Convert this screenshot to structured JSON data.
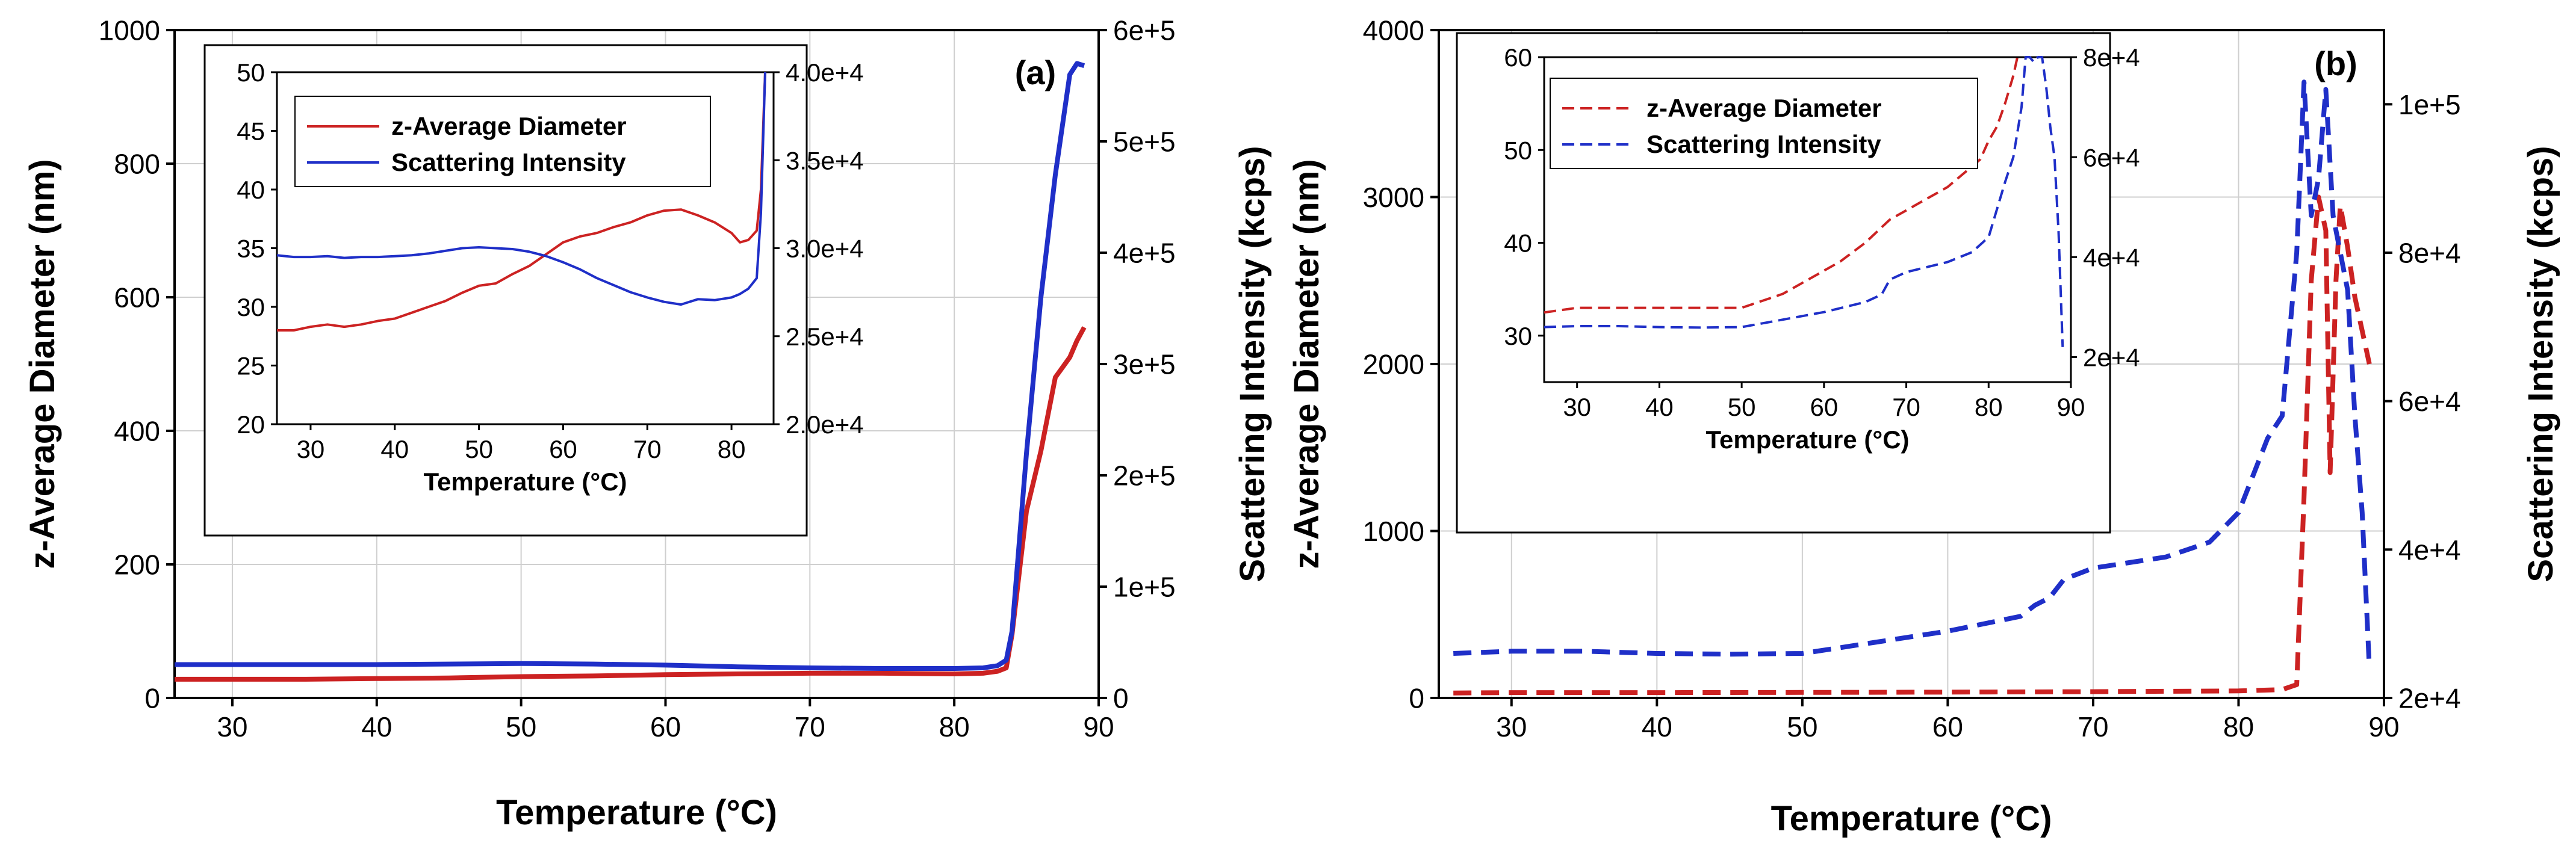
{
  "colors": {
    "red": "#cc2222",
    "blue": "#1f2fc8",
    "grid": "#cfcfcf",
    "axis": "#000000"
  },
  "chart_data": [
    {
      "id": "a",
      "type": "line",
      "panel_label": "(a)",
      "xlabel": "Temperature (°C)",
      "ylabel": "z-Average Diameter (nm)",
      "y2label": "Scattering Intensity (kcps)",
      "xlim": [
        26,
        90
      ],
      "ylim": [
        0,
        1000
      ],
      "y2lim": [
        0,
        600000
      ],
      "xticks": [
        30,
        40,
        50,
        60,
        70,
        80,
        90
      ],
      "yticks": [
        0,
        200,
        400,
        600,
        800,
        1000
      ],
      "y2ticks": [
        0,
        100000,
        200000,
        300000,
        400000,
        500000,
        600000
      ],
      "y2ticklabels": [
        "0",
        "1e+5",
        "2e+5",
        "3e+5",
        "4e+5",
        "5e+5",
        "6e+5"
      ],
      "grid": true,
      "line_style": "solid",
      "series": [
        {
          "name": "z-Average Diameter",
          "axis": "y",
          "color": "#cc2222",
          "x": [
            26,
            30,
            35,
            40,
            45,
            50,
            55,
            60,
            65,
            70,
            75,
            80,
            82,
            83,
            83.6,
            84,
            85,
            86,
            87,
            88,
            88.5,
            89
          ],
          "y": [
            28,
            28,
            28,
            29,
            30,
            32,
            33,
            35,
            36,
            37,
            37,
            36,
            37,
            40,
            45,
            95,
            280,
            370,
            480,
            510,
            535,
            555
          ]
        },
        {
          "name": "Scattering Intensity",
          "axis": "y2",
          "color": "#1f2fc8",
          "x": [
            26,
            30,
            35,
            40,
            45,
            50,
            55,
            60,
            65,
            70,
            75,
            80,
            82,
            83,
            83.6,
            84,
            85,
            86,
            87,
            88,
            88.5,
            89
          ],
          "y": [
            30000,
            30000,
            30000,
            30000,
            30500,
            31000,
            30500,
            29500,
            28000,
            27000,
            26500,
            26500,
            27000,
            29000,
            34000,
            60000,
            220000,
            360000,
            470000,
            560000,
            570000,
            568000
          ]
        }
      ],
      "inset": {
        "xlabel": "Temperature (°C)",
        "xlim": [
          26,
          85
        ],
        "ylim": [
          20,
          50
        ],
        "y2lim": [
          20000,
          40000
        ],
        "xticks": [
          30,
          40,
          50,
          60,
          70,
          80
        ],
        "yticks": [
          20,
          25,
          30,
          35,
          40,
          45,
          50
        ],
        "y2ticks": [
          20000,
          25000,
          30000,
          35000,
          40000
        ],
        "y2ticklabels": [
          "2.0e+4",
          "2.5e+4",
          "3.0e+4",
          "3.5e+4",
          "4.0e+4"
        ],
        "grid": false,
        "line_style": "solid",
        "legend": [
          "z-Average Diameter",
          "Scattering Intensity"
        ],
        "series": [
          {
            "name": "z-Average Diameter",
            "axis": "y",
            "color": "#cc2222",
            "x": [
              26,
              28,
              30,
              32,
              34,
              36,
              38,
              40,
              42,
              44,
              46,
              48,
              50,
              52,
              54,
              56,
              58,
              60,
              62,
              64,
              66,
              68,
              70,
              72,
              74,
              76,
              78,
              80,
              81,
              82,
              83,
              83.5,
              84
            ],
            "y": [
              28,
              28,
              28.3,
              28.5,
              28.3,
              28.5,
              28.8,
              29,
              29.5,
              30,
              30.5,
              31.2,
              31.8,
              32,
              32.8,
              33.5,
              34.5,
              35.5,
              36,
              36.3,
              36.8,
              37.2,
              37.8,
              38.2,
              38.3,
              37.8,
              37.2,
              36.3,
              35.5,
              35.7,
              36.5,
              40,
              50
            ]
          },
          {
            "name": "Scattering Intensity",
            "axis": "y2",
            "color": "#1f2fc8",
            "x": [
              26,
              28,
              30,
              32,
              34,
              36,
              38,
              40,
              42,
              44,
              46,
              48,
              50,
              52,
              54,
              56,
              58,
              60,
              62,
              64,
              66,
              68,
              70,
              72,
              74,
              76,
              78,
              80,
              81,
              82,
              83,
              83.5,
              84
            ],
            "y": [
              29600,
              29500,
              29500,
              29550,
              29450,
              29500,
              29500,
              29550,
              29600,
              29700,
              29850,
              30000,
              30050,
              30000,
              29950,
              29800,
              29550,
              29200,
              28800,
              28300,
              27900,
              27500,
              27200,
              26950,
              26800,
              27100,
              27050,
              27200,
              27400,
              27700,
              28300,
              32000,
              40000
            ]
          }
        ]
      }
    },
    {
      "id": "b",
      "type": "line",
      "panel_label": "(b)",
      "xlabel": "Temperature (°C)",
      "ylabel": "z-Average Diameter (nm)",
      "y2label": "Scattering Intensity (kcps)",
      "xlim": [
        25,
        90
      ],
      "ylim": [
        0,
        4000
      ],
      "y2lim": [
        20000,
        110000
      ],
      "xticks": [
        30,
        40,
        50,
        60,
        70,
        80,
        90
      ],
      "yticks": [
        0,
        1000,
        2000,
        3000,
        4000
      ],
      "y2ticks": [
        20000,
        40000,
        60000,
        80000,
        100000
      ],
      "y2ticklabels": [
        "2e+4",
        "4e+4",
        "6e+4",
        "8e+4",
        "1e+5"
      ],
      "grid": true,
      "line_style": "dashed",
      "series": [
        {
          "name": "z-Average Diameter",
          "axis": "y",
          "color": "#cc2222",
          "x": [
            26,
            30,
            40,
            50,
            60,
            70,
            80,
            83,
            84,
            84.5,
            85,
            85.5,
            86,
            86.3,
            86.7,
            87,
            87.5,
            88,
            88.5,
            89
          ],
          "y": [
            30,
            32,
            32,
            33,
            35,
            38,
            42,
            50,
            80,
            1200,
            2500,
            3000,
            2800,
            1350,
            2500,
            2950,
            2700,
            2400,
            2200,
            2000
          ]
        },
        {
          "name": "Scattering Intensity",
          "axis": "y2",
          "color": "#1f2fc8",
          "x": [
            26,
            30,
            35,
            40,
            45,
            50,
            55,
            60,
            65,
            66,
            67,
            68,
            70,
            75,
            78,
            80,
            82,
            83,
            84,
            84.5,
            85,
            85.5,
            86,
            86.5,
            87,
            87.5,
            88,
            88.5,
            89
          ],
          "y": [
            26000,
            26300,
            26300,
            26000,
            25900,
            26000,
            27500,
            29000,
            31000,
            32500,
            33500,
            36000,
            37500,
            39000,
            41000,
            45000,
            55000,
            58000,
            80000,
            103000,
            85000,
            90000,
            102000,
            85000,
            80000,
            75000,
            58000,
            45000,
            24000
          ]
        }
      ],
      "inset": {
        "xlabel": "Temperature (°C)",
        "xlim": [
          26,
          90
        ],
        "ylim": [
          25,
          60
        ],
        "y2lim": [
          15000,
          80000
        ],
        "xticks": [
          30,
          40,
          50,
          60,
          70,
          80,
          90
        ],
        "yticks": [
          30,
          40,
          50,
          60
        ],
        "y2ticks": [
          20000,
          40000,
          60000,
          80000
        ],
        "y2ticklabels": [
          "2e+4",
          "4e+4",
          "6e+4",
          "8e+4"
        ],
        "grid": false,
        "line_style": "dashed",
        "legend": [
          "z-Average Diameter",
          "Scattering Intensity"
        ],
        "series": [
          {
            "name": "z-Average Diameter",
            "axis": "y",
            "color": "#cc2222",
            "x": [
              26,
              30,
              35,
              40,
              45,
              50,
              55,
              60,
              62,
              65,
              68,
              70,
              72,
              75,
              77,
              79,
              80,
              81,
              82,
              83,
              83.5,
              84
            ],
            "y": [
              32.5,
              33,
              33,
              33,
              33,
              33,
              34.5,
              37,
              38,
              40,
              42.5,
              43.5,
              44.5,
              46,
              47.5,
              49,
              51,
              52.5,
              55,
              58,
              60,
              61
            ]
          },
          {
            "name": "Scattering Intensity",
            "axis": "y2",
            "color": "#1f2fc8",
            "x": [
              26,
              30,
              35,
              40,
              45,
              50,
              55,
              60,
              65,
              67,
              68,
              70,
              75,
              78,
              80,
              82,
              83,
              84,
              84.5,
              85,
              85.5,
              86,
              86.5,
              87,
              87.5,
              88,
              88.5,
              89
            ],
            "y": [
              26000,
              26200,
              26200,
              26000,
              25900,
              26000,
              27500,
              29000,
              31000,
              32500,
              35500,
              37000,
              39000,
              41000,
              44000,
              55000,
              60000,
              70000,
              80000,
              82000,
              79000,
              80000,
              81000,
              74000,
              66000,
              60000,
              45000,
              22000
            ]
          }
        ]
      }
    }
  ]
}
